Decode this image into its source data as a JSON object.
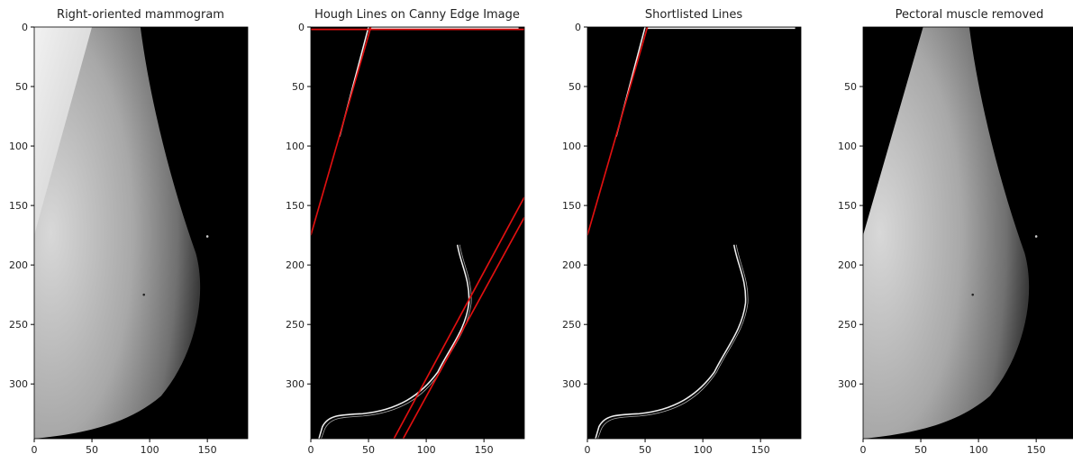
{
  "chart_data": [
    {
      "type": "image",
      "title": "Right-oriented mammogram",
      "xlim": [
        0,
        185
      ],
      "ylim": [
        346,
        0
      ],
      "xticks": [
        0,
        50,
        100,
        150
      ],
      "yticks": [
        0,
        50,
        100,
        150,
        200,
        250,
        300
      ]
    },
    {
      "type": "image",
      "title": "Hough Lines on Canny Edge Image",
      "xlim": [
        0,
        185
      ],
      "ylim": [
        346,
        0
      ],
      "xticks": [
        0,
        50,
        100,
        150
      ],
      "yticks": [
        0,
        50,
        100,
        150,
        200,
        250,
        300
      ]
    },
    {
      "type": "image",
      "title": "Shortlisted Lines",
      "xlim": [
        0,
        185
      ],
      "ylim": [
        346,
        0
      ],
      "xticks": [
        0,
        50,
        100,
        150
      ],
      "yticks": [
        0,
        50,
        100,
        150,
        200,
        250,
        300
      ]
    },
    {
      "type": "image",
      "title": "Pectoral muscle removed",
      "xlim": [
        0,
        185
      ],
      "ylim": [
        346,
        0
      ],
      "xticks": [
        0,
        50,
        100,
        150
      ],
      "yticks": [
        50,
        100,
        150,
        200,
        250,
        300
      ]
    }
  ]
}
